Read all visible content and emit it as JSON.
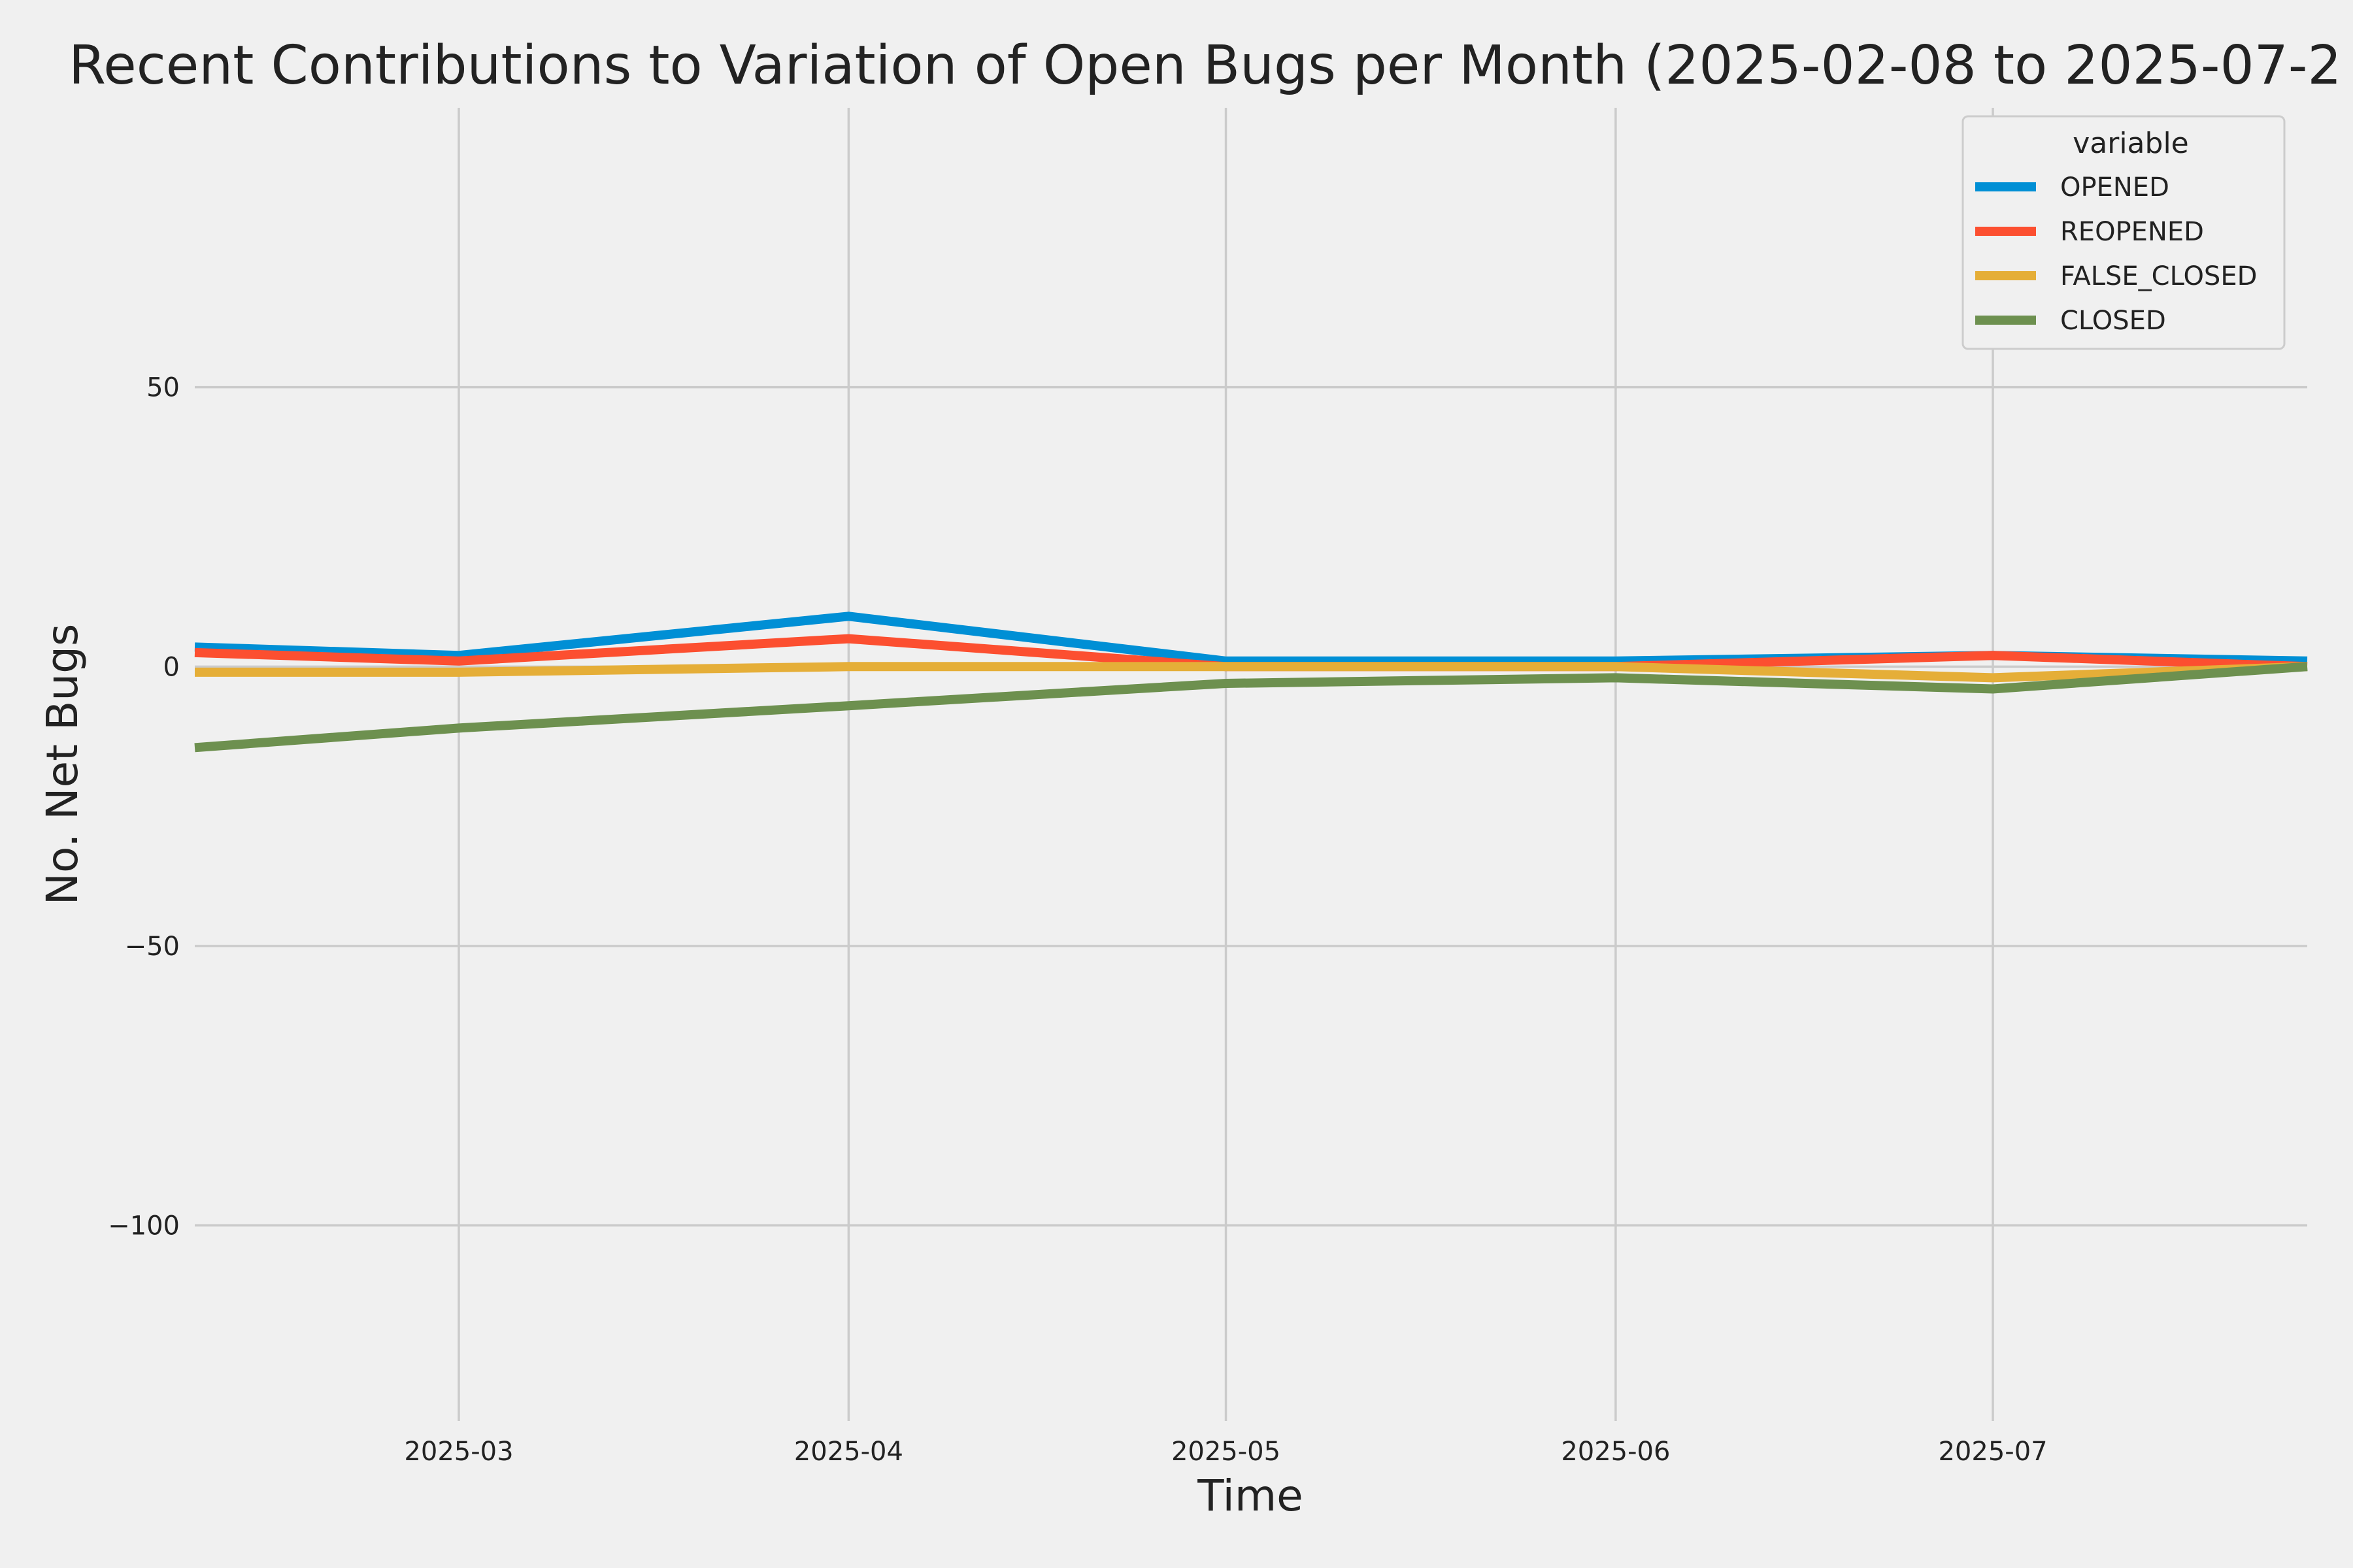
{
  "chart_data": {
    "type": "line",
    "title": "Recent Contributions to Variation of Open Bugs per Month (2025-02-08 to 2025-07-2",
    "xlabel": "Time",
    "ylabel": "No. Net Bugs",
    "x": [
      "2025-02-08",
      "2025-03-01",
      "2025-04-01",
      "2025-05-01",
      "2025-06-01",
      "2025-07-01",
      "2025-07-26"
    ],
    "xlim": [
      "2025-02-08",
      "2025-07-26"
    ],
    "xticks": [
      "2025-03",
      "2025-04",
      "2025-05",
      "2025-06",
      "2025-07"
    ],
    "xtick_dates": [
      "2025-03-01",
      "2025-04-01",
      "2025-05-01",
      "2025-06-01",
      "2025-07-01"
    ],
    "ylim": [
      -135,
      100
    ],
    "yticks": [
      50,
      0,
      -50,
      -100
    ],
    "ytick_labels": [
      "50",
      "0",
      "−50",
      "−100"
    ],
    "grid": true,
    "legend": {
      "title": "variable",
      "position": "top-right"
    },
    "series": [
      {
        "name": "OPENED",
        "color": "#008fd5",
        "values": [
          3.5,
          2,
          9,
          1,
          1,
          2,
          1
        ]
      },
      {
        "name": "REOPENED",
        "color": "#fc4f30",
        "values": [
          2.5,
          1,
          5,
          0,
          0,
          2,
          0
        ]
      },
      {
        "name": "FALSE_CLOSED",
        "color": "#e5ae38",
        "values": [
          -1,
          -1,
          0,
          0,
          0,
          -2,
          0
        ]
      },
      {
        "name": "CLOSED",
        "color": "#6d904f",
        "values": [
          -14.5,
          -11,
          -7,
          -3,
          -2,
          -4,
          0
        ]
      }
    ]
  }
}
